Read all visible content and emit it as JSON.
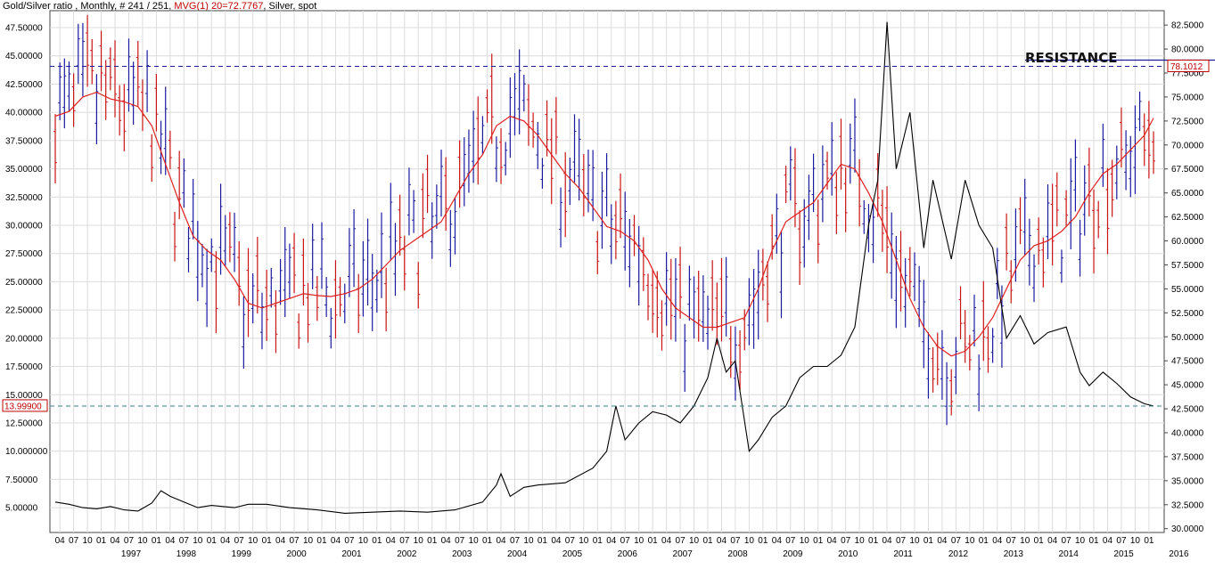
{
  "header": {
    "prefix": "Gold/Silver ratio , Monthly, # 241 / 251, ",
    "indicator": "MVG(1) 20=72.7767",
    "suffix": ", Silver, spot"
  },
  "annotation": "RESISTANCE",
  "colors": {
    "up_bar": "#1a1aa0",
    "down_bar": "#c81414",
    "moving_average": "#e02020",
    "silver_line": "#000000",
    "grid": "#dcdcdc",
    "resistance_dash": "#1a1a9a",
    "support_dash": "#3a8080",
    "tag_red": "#c00000"
  },
  "chart_data": {
    "type": "line",
    "title": "Gold/Silver ratio , Monthly, # 241 / 251, MVG(1) 20=72.7767, Silver, spot",
    "x_range": [
      "1996-03",
      "2016-03"
    ],
    "month_tick_labels": [
      "04",
      "07",
      "10",
      "01"
    ],
    "year_labels": [
      "1997",
      "1998",
      "1999",
      "2000",
      "2001",
      "2002",
      "2003",
      "2004",
      "2005",
      "2006",
      "2007",
      "2008",
      "2009",
      "2010",
      "2011",
      "2012",
      "2013",
      "2014",
      "2015",
      "2016"
    ],
    "left_axis": {
      "series": "Silver, spot",
      "ylim": [
        2.8,
        49.0
      ],
      "ticks": [
        "5.00000",
        "7.50000",
        "10.000000",
        "12.50000",
        "15.00000",
        "17.50000",
        "20.00000",
        "22.50000",
        "25.00000",
        "27.50000",
        "30.00000",
        "32.50000",
        "35.00000",
        "37.50000",
        "40.00000",
        "42.50000",
        "45.00000",
        "47.50000"
      ],
      "current_value": "13.99900"
    },
    "right_axis": {
      "series": "Gold/Silver ratio",
      "ylim": [
        29.6,
        84.0
      ],
      "ticks": [
        "30.0000",
        "32.5000",
        "35.0000",
        "37.5000",
        "40.0000",
        "42.5000",
        "45.0000",
        "47.5000",
        "50.0000",
        "52.5000",
        "55.0000",
        "57.5000",
        "60.0000",
        "62.5000",
        "65.0000",
        "67.5000",
        "70.0000",
        "72.5000",
        "75.0000",
        "77.5000",
        "80.0000",
        "82.5000"
      ],
      "current_value": "78.1012",
      "resistance_level": 78.2
    },
    "ratio_moving_average": [
      [
        "1996-03",
        73.0
      ],
      [
        "1996-06",
        73.5
      ],
      [
        "1996-09",
        75.0
      ],
      [
        "1996-12",
        75.5
      ],
      [
        "1997-03",
        74.8
      ],
      [
        "1997-06",
        74.5
      ],
      [
        "1997-09",
        74.0
      ],
      [
        "1997-12",
        72.0
      ],
      [
        "1998-03",
        68.0
      ],
      [
        "1998-06",
        64.0
      ],
      [
        "1998-09",
        60.5
      ],
      [
        "1998-12",
        59.0
      ],
      [
        "1999-03",
        58.0
      ],
      [
        "1999-06",
        56.0
      ],
      [
        "1999-09",
        53.5
      ],
      [
        "1999-12",
        53.0
      ],
      [
        "2000-03",
        53.5
      ],
      [
        "2000-06",
        54.0
      ],
      [
        "2000-09",
        54.5
      ],
      [
        "2000-12",
        54.3
      ],
      [
        "2001-03",
        54.2
      ],
      [
        "2001-06",
        54.5
      ],
      [
        "2001-09",
        55.0
      ],
      [
        "2001-12",
        56.0
      ],
      [
        "2002-03",
        57.5
      ],
      [
        "2002-06",
        59.0
      ],
      [
        "2002-09",
        60.0
      ],
      [
        "2002-12",
        61.0
      ],
      [
        "2003-03",
        62.0
      ],
      [
        "2003-06",
        64.5
      ],
      [
        "2003-09",
        67.0
      ],
      [
        "2003-12",
        69.0
      ],
      [
        "2004-03",
        72.0
      ],
      [
        "2004-06",
        73.0
      ],
      [
        "2004-09",
        72.5
      ],
      [
        "2004-12",
        71.0
      ],
      [
        "2005-03",
        69.0
      ],
      [
        "2005-06",
        67.0
      ],
      [
        "2005-09",
        65.5
      ],
      [
        "2005-12",
        63.5
      ],
      [
        "2006-03",
        61.5
      ],
      [
        "2006-06",
        61.0
      ],
      [
        "2006-09",
        60.0
      ],
      [
        "2006-12",
        58.0
      ],
      [
        "2007-03",
        55.0
      ],
      [
        "2007-06",
        53.0
      ],
      [
        "2007-09",
        52.0
      ],
      [
        "2007-12",
        51.0
      ],
      [
        "2008-03",
        51.0
      ],
      [
        "2008-06",
        51.5
      ],
      [
        "2008-09",
        52.0
      ],
      [
        "2008-12",
        55.0
      ],
      [
        "2009-03",
        59.0
      ],
      [
        "2009-06",
        62.0
      ],
      [
        "2009-09",
        63.0
      ],
      [
        "2009-12",
        64.0
      ],
      [
        "2010-03",
        66.0
      ],
      [
        "2010-06",
        68.0
      ],
      [
        "2010-09",
        67.5
      ],
      [
        "2010-12",
        65.0
      ],
      [
        "2011-03",
        62.0
      ],
      [
        "2011-06",
        58.0
      ],
      [
        "2011-09",
        54.0
      ],
      [
        "2011-12",
        51.0
      ],
      [
        "2012-03",
        49.0
      ],
      [
        "2012-06",
        48.0
      ],
      [
        "2012-09",
        48.5
      ],
      [
        "2012-12",
        50.0
      ],
      [
        "2013-03",
        52.0
      ],
      [
        "2013-06",
        55.0
      ],
      [
        "2013-09",
        58.0
      ],
      [
        "2013-12",
        59.5
      ],
      [
        "2014-03",
        60.0
      ],
      [
        "2014-06",
        61.0
      ],
      [
        "2014-09",
        62.5
      ],
      [
        "2014-12",
        65.0
      ],
      [
        "2015-03",
        67.0
      ],
      [
        "2015-06",
        68.0
      ],
      [
        "2015-09",
        69.5
      ],
      [
        "2015-12",
        71.0
      ],
      [
        "2016-02",
        72.8
      ]
    ],
    "silver_price": [
      [
        "1996-03",
        5.5
      ],
      [
        "1996-06",
        5.3
      ],
      [
        "1996-09",
        5.0
      ],
      [
        "1996-12",
        4.9
      ],
      [
        "1997-03",
        5.1
      ],
      [
        "1997-06",
        4.8
      ],
      [
        "1997-09",
        4.7
      ],
      [
        "1997-12",
        5.4
      ],
      [
        "1998-02",
        6.5
      ],
      [
        "1998-04",
        6.0
      ],
      [
        "1998-07",
        5.5
      ],
      [
        "1998-10",
        5.0
      ],
      [
        "1999-01",
        5.2
      ],
      [
        "1999-06",
        5.0
      ],
      [
        "1999-09",
        5.3
      ],
      [
        "2000-01",
        5.3
      ],
      [
        "2000-06",
        5.0
      ],
      [
        "2000-12",
        4.8
      ],
      [
        "2001-06",
        4.5
      ],
      [
        "2001-12",
        4.6
      ],
      [
        "2002-06",
        4.7
      ],
      [
        "2002-12",
        4.6
      ],
      [
        "2003-06",
        4.8
      ],
      [
        "2003-12",
        5.5
      ],
      [
        "2004-03",
        7.0
      ],
      [
        "2004-04",
        8.0
      ],
      [
        "2004-06",
        6.0
      ],
      [
        "2004-09",
        6.8
      ],
      [
        "2004-12",
        7.0
      ],
      [
        "2005-06",
        7.2
      ],
      [
        "2005-12",
        8.5
      ],
      [
        "2006-03",
        10.0
      ],
      [
        "2006-05",
        14.0
      ],
      [
        "2006-07",
        11.0
      ],
      [
        "2006-10",
        12.5
      ],
      [
        "2007-01",
        13.5
      ],
      [
        "2007-04",
        13.2
      ],
      [
        "2007-07",
        12.5
      ],
      [
        "2007-10",
        14.0
      ],
      [
        "2008-01",
        16.5
      ],
      [
        "2008-03",
        20.0
      ],
      [
        "2008-05",
        17.0
      ],
      [
        "2008-07",
        18.0
      ],
      [
        "2008-10",
        10.0
      ],
      [
        "2008-12",
        11.0
      ],
      [
        "2009-03",
        13.0
      ],
      [
        "2009-06",
        14.0
      ],
      [
        "2009-09",
        16.5
      ],
      [
        "2009-12",
        17.5
      ],
      [
        "2010-03",
        17.5
      ],
      [
        "2010-06",
        18.5
      ],
      [
        "2010-09",
        21.0
      ],
      [
        "2010-12",
        30.0
      ],
      [
        "2011-02",
        34.0
      ],
      [
        "2011-04",
        48.0
      ],
      [
        "2011-06",
        35.0
      ],
      [
        "2011-09",
        40.0
      ],
      [
        "2011-12",
        28.0
      ],
      [
        "2012-02",
        34.0
      ],
      [
        "2012-06",
        27.0
      ],
      [
        "2012-09",
        34.0
      ],
      [
        "2012-12",
        30.0
      ],
      [
        "2013-03",
        28.0
      ],
      [
        "2013-06",
        20.0
      ],
      [
        "2013-09",
        22.0
      ],
      [
        "2013-12",
        19.5
      ],
      [
        "2014-03",
        20.5
      ],
      [
        "2014-07",
        21.0
      ],
      [
        "2014-10",
        17.0
      ],
      [
        "2014-12",
        15.8
      ],
      [
        "2015-03",
        17.0
      ],
      [
        "2015-06",
        16.0
      ],
      [
        "2015-09",
        14.8
      ],
      [
        "2015-12",
        14.2
      ],
      [
        "2016-02",
        14.0
      ]
    ],
    "reference_lines": [
      {
        "axis": "right",
        "value": 78.2,
        "style": "dashed"
      },
      {
        "axis": "left",
        "value": 14.0,
        "style": "dashed"
      }
    ]
  }
}
